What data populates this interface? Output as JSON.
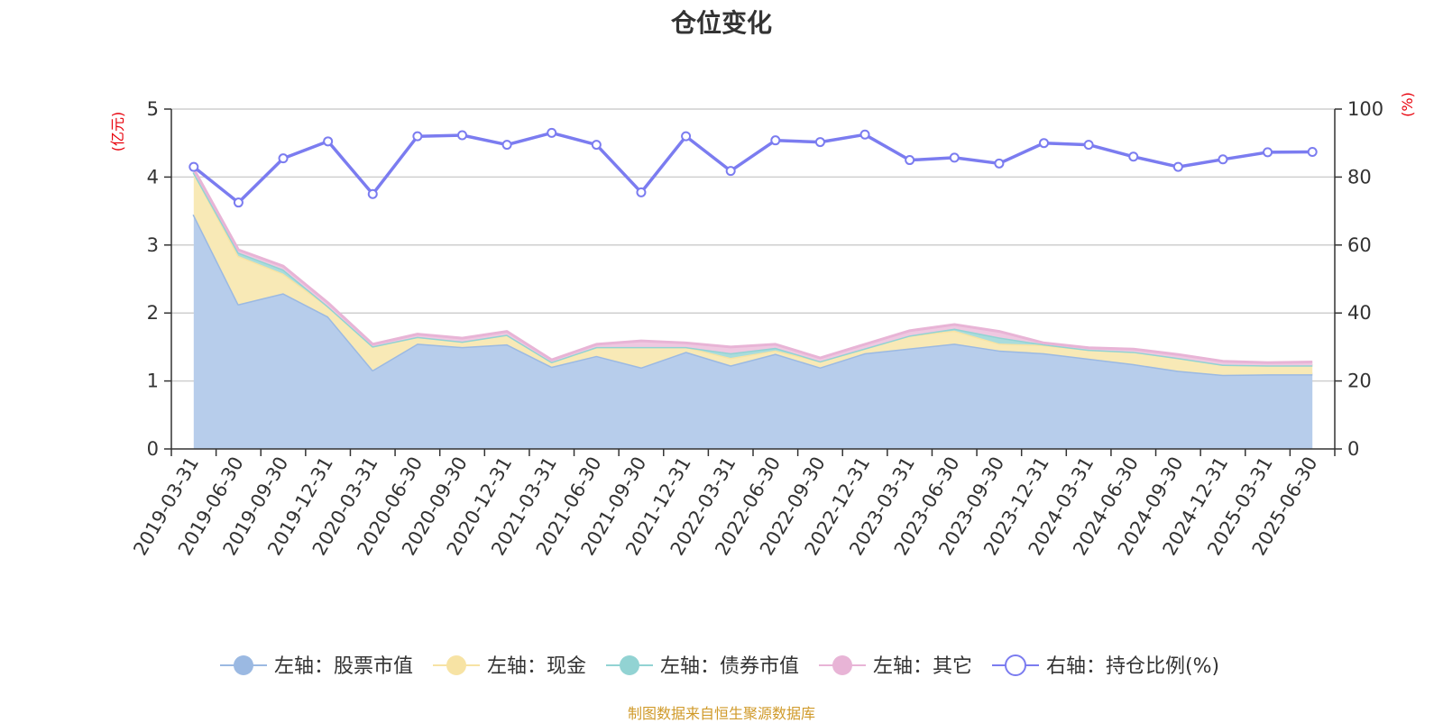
{
  "page": {
    "title": "仓位变化",
    "source_note": "制图数据来自恒生聚源数据库"
  },
  "chart_data": {
    "type": "area",
    "title": "仓位变化",
    "left_axis": {
      "unit": "(亿元)",
      "ylim": [
        0,
        5
      ],
      "ticks": [
        0,
        1,
        2,
        3,
        4,
        5
      ]
    },
    "right_axis": {
      "unit": "(%)",
      "ylim": [
        0,
        100
      ],
      "ticks": [
        0,
        20,
        40,
        60,
        80,
        100
      ]
    },
    "grid": true,
    "legend_position": "bottom",
    "categories": [
      "2019-03-31",
      "2019-06-30",
      "2019-09-30",
      "2019-12-31",
      "2020-03-31",
      "2020-06-30",
      "2020-09-30",
      "2020-12-31",
      "2021-03-31",
      "2021-06-30",
      "2021-09-30",
      "2021-12-31",
      "2022-03-31",
      "2022-06-30",
      "2022-09-30",
      "2022-12-31",
      "2023-03-31",
      "2023-06-30",
      "2023-09-30",
      "2023-12-31",
      "2024-03-31",
      "2024-06-30",
      "2024-09-30",
      "2024-12-31",
      "2025-03-31",
      "2025-06-30"
    ],
    "series": [
      {
        "name": "左轴：股票市值",
        "axis": "left",
        "kind": "stacked-area",
        "color": "#9bb9e2",
        "fill": "#b7cdeb",
        "values": [
          3.45,
          2.13,
          2.29,
          1.95,
          1.16,
          1.55,
          1.5,
          1.54,
          1.21,
          1.37,
          1.2,
          1.43,
          1.23,
          1.4,
          1.2,
          1.41,
          1.48,
          1.55,
          1.45,
          1.41,
          1.33,
          1.25,
          1.15,
          1.09,
          1.1,
          1.1
        ]
      },
      {
        "name": "左轴：现金",
        "axis": "left",
        "kind": "stacked-area",
        "color": "#f7e3a4",
        "fill": "#f8e9b6",
        "values": [
          0.62,
          0.71,
          0.29,
          0.15,
          0.35,
          0.1,
          0.08,
          0.14,
          0.07,
          0.13,
          0.3,
          0.07,
          0.11,
          0.05,
          0.09,
          0.07,
          0.19,
          0.19,
          0.1,
          0.12,
          0.13,
          0.18,
          0.19,
          0.15,
          0.13,
          0.13
        ]
      },
      {
        "name": "左轴：债券市值",
        "axis": "left",
        "kind": "stacked-area",
        "color": "#92d3d3",
        "fill": "#a9dcdc",
        "values": [
          0,
          0.05,
          0.06,
          0,
          0,
          0,
          0,
          0,
          0,
          0,
          0,
          0,
          0.07,
          0.04,
          0,
          0,
          0,
          0.03,
          0.09,
          0.01,
          0,
          0,
          0,
          0,
          0,
          0
        ]
      },
      {
        "name": "左轴：其它",
        "axis": "left",
        "kind": "stacked-area",
        "color": "#e8b4d6",
        "fill": "#efc8e1",
        "values": [
          0.05,
          0.04,
          0.05,
          0.05,
          0.03,
          0.04,
          0.05,
          0.05,
          0.03,
          0.04,
          0.09,
          0.06,
          0.09,
          0.05,
          0.05,
          0.06,
          0.07,
          0.06,
          0.09,
          0.02,
          0.03,
          0.04,
          0.05,
          0.05,
          0.04,
          0.05
        ]
      },
      {
        "name": "右轴：持仓比例(%)",
        "axis": "right",
        "kind": "line",
        "color": "#7b7cf0",
        "values": [
          83,
          72.5,
          85.5,
          90.5,
          75,
          92,
          92.3,
          89.5,
          93,
          89.5,
          75.5,
          92,
          81.8,
          90.8,
          90.3,
          92.5,
          85,
          85.7,
          84,
          90,
          89.5,
          86,
          83,
          85.2,
          87.3,
          87.4
        ]
      }
    ]
  }
}
